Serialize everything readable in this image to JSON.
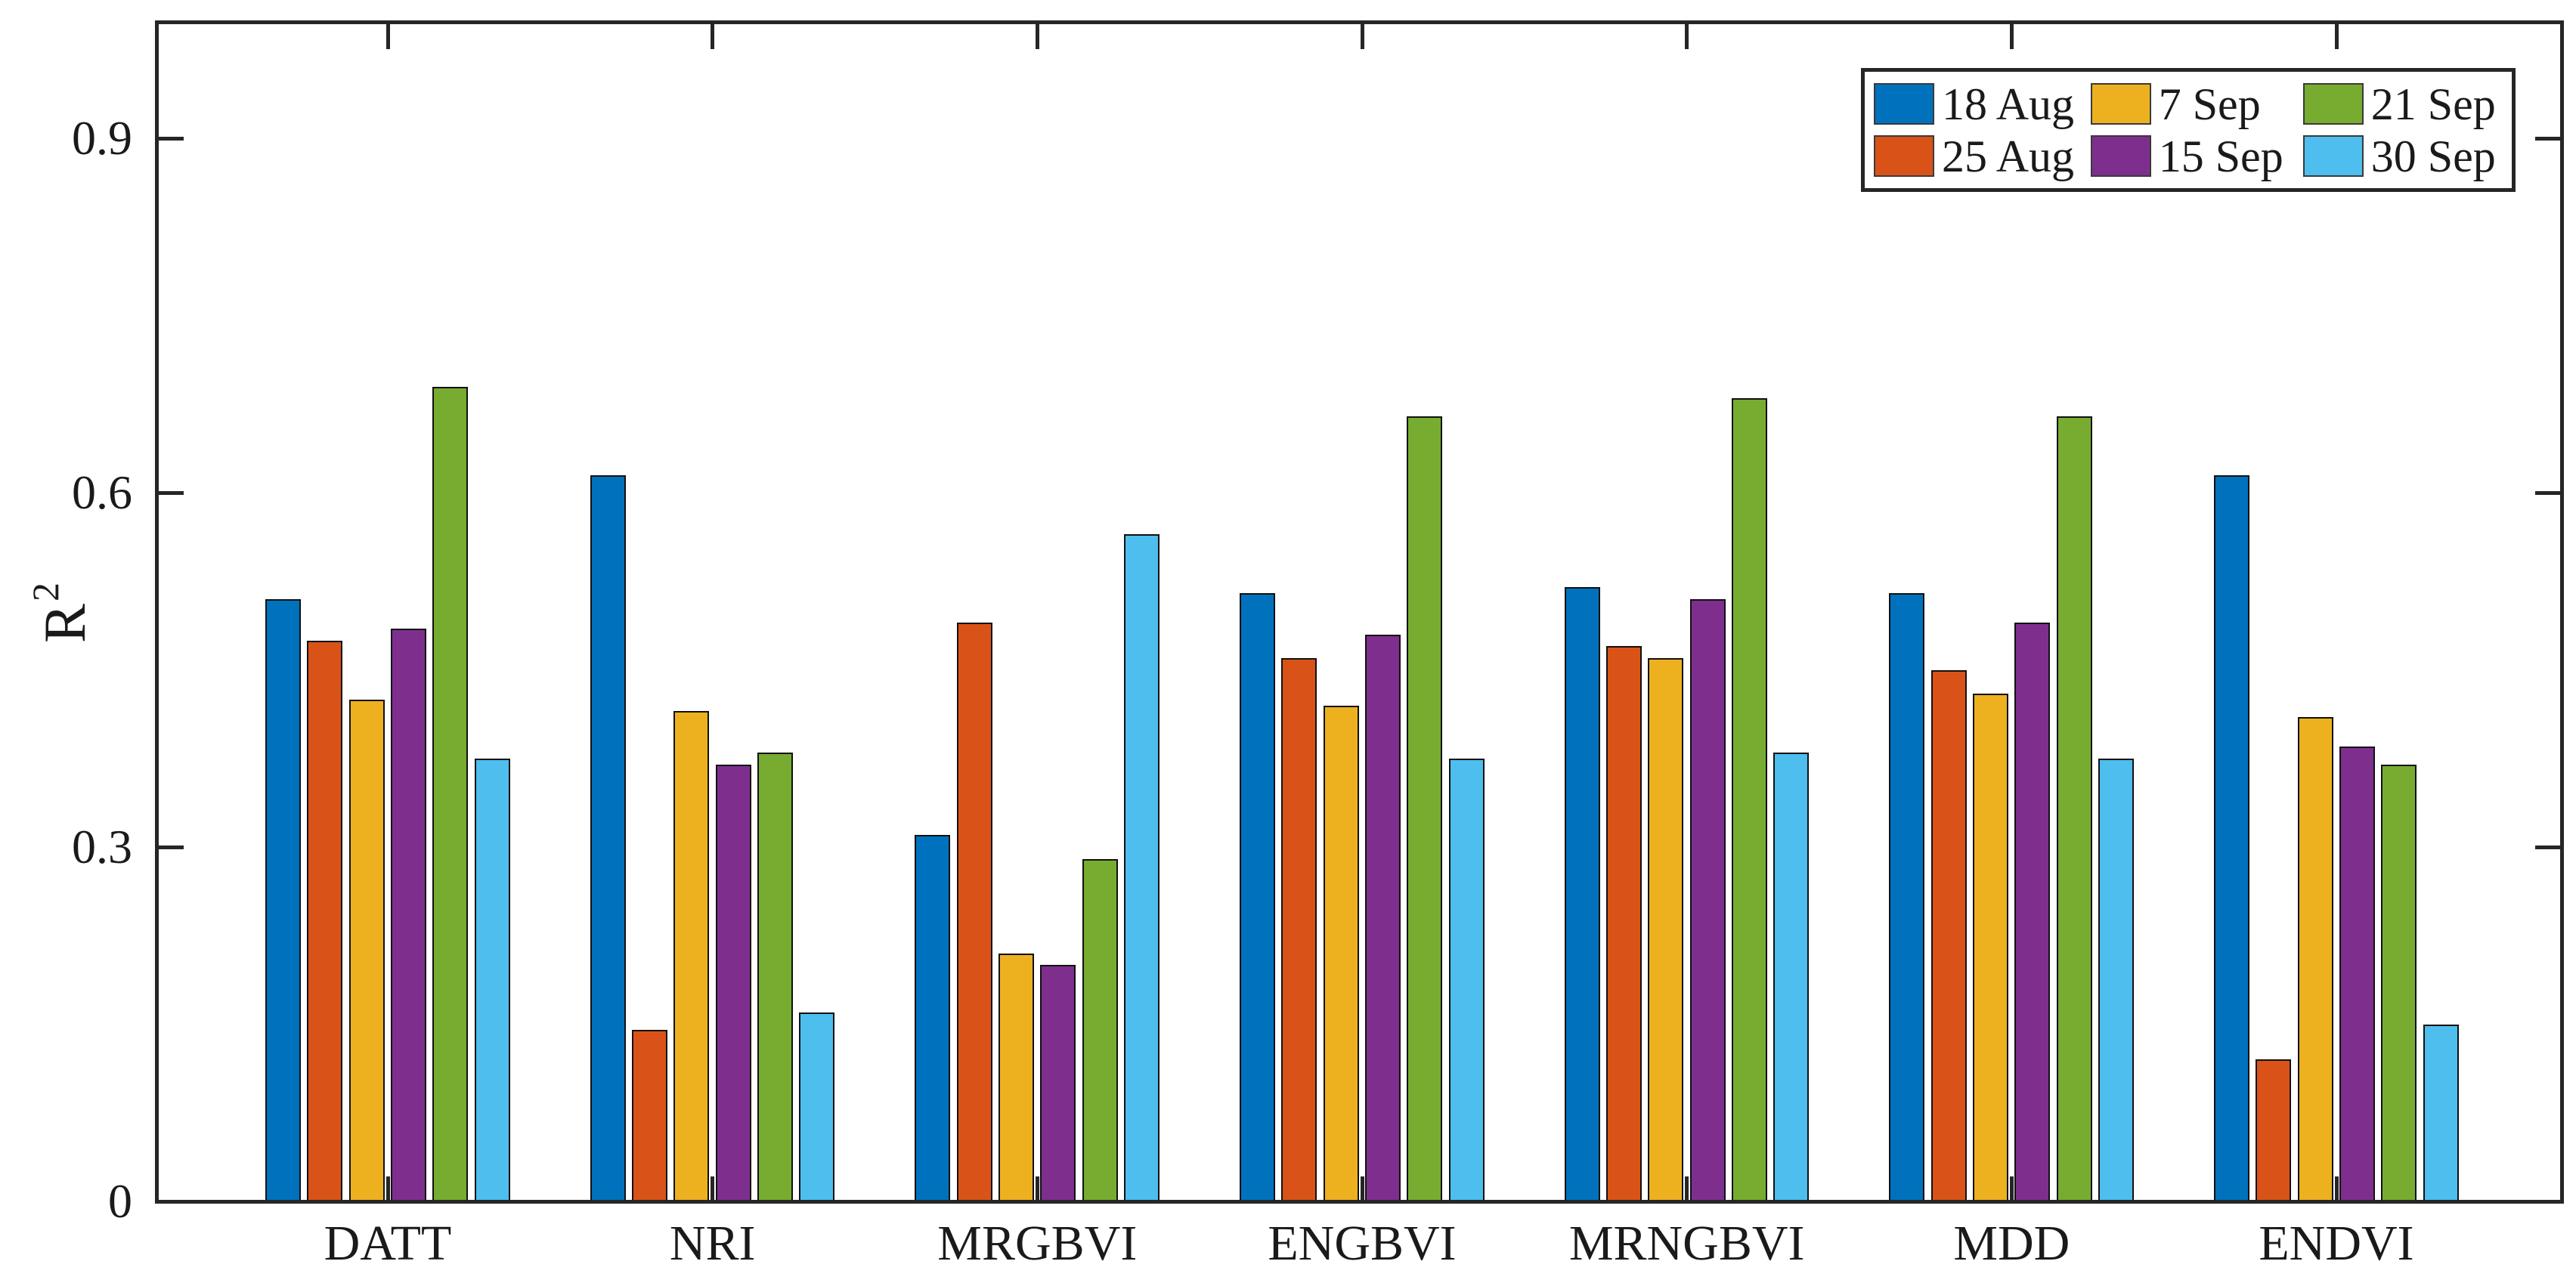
{
  "chart_data": {
    "type": "bar",
    "title": "",
    "xlabel": "",
    "ylabel_base": "R",
    "ylabel_sup": "2",
    "categories": [
      "DATT",
      "NRI",
      "MRGBVI",
      "ENGBVI",
      "MRNGBVI",
      "MDD",
      "ENDVI"
    ],
    "y_ticks": [
      0,
      0.3,
      0.6,
      0.9
    ],
    "ylim": [
      0,
      1.0
    ],
    "grid": false,
    "legend_position": "top-right-inside",
    "legend_labels": [
      "18 Aug",
      "7 Sep",
      "21 Sep",
      "25 Aug",
      "15 Sep",
      "30 Sep"
    ],
    "series": [
      {
        "name": "18 Aug",
        "color": "#0072BD",
        "values": [
          0.51,
          0.615,
          0.31,
          0.515,
          0.52,
          0.515,
          0.615
        ]
      },
      {
        "name": "25 Aug",
        "color": "#D95319",
        "values": [
          0.475,
          0.145,
          0.49,
          0.46,
          0.47,
          0.45,
          0.12
        ]
      },
      {
        "name": "7 Sep",
        "color": "#EDB120",
        "values": [
          0.425,
          0.415,
          0.21,
          0.42,
          0.46,
          0.43,
          0.41
        ]
      },
      {
        "name": "15 Sep",
        "color": "#7E2F8E",
        "values": [
          0.485,
          0.37,
          0.2,
          0.48,
          0.51,
          0.49,
          0.385
        ]
      },
      {
        "name": "21 Sep",
        "color": "#77AC30",
        "values": [
          0.69,
          0.38,
          0.29,
          0.665,
          0.68,
          0.665,
          0.37
        ]
      },
      {
        "name": "30 Sep",
        "color": "#4DBEEE",
        "values": [
          0.375,
          0.16,
          0.565,
          0.375,
          0.38,
          0.375,
          0.15
        ]
      }
    ],
    "axis_color": "#262626",
    "bar_outline_color": "#111111"
  }
}
